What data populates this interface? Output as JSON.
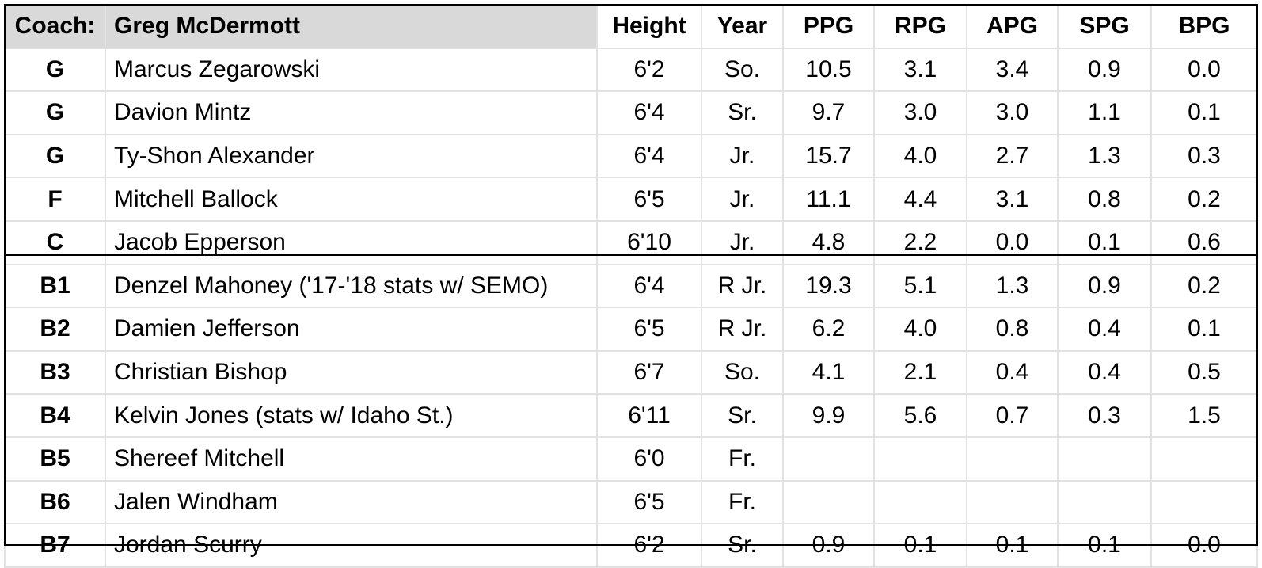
{
  "header": {
    "coach_label": "Coach:",
    "coach_name": "Greg McDermott",
    "columns": [
      "Height",
      "Year",
      "PPG",
      "RPG",
      "APG",
      "SPG",
      "BPG"
    ]
  },
  "rows": [
    {
      "pos": "G",
      "name": "Marcus Zegarowski",
      "height": "6'2",
      "year": "So.",
      "ppg": "10.5",
      "rpg": "3.1",
      "apg": "3.4",
      "spg": "0.9",
      "bpg": "0.0"
    },
    {
      "pos": "G",
      "name": "Davion Mintz",
      "height": "6'4",
      "year": "Sr.",
      "ppg": "9.7",
      "rpg": "3.0",
      "apg": "3.0",
      "spg": "1.1",
      "bpg": "0.1"
    },
    {
      "pos": "G",
      "name": "Ty-Shon Alexander",
      "height": "6'4",
      "year": "Jr.",
      "ppg": "15.7",
      "rpg": "4.0",
      "apg": "2.7",
      "spg": "1.3",
      "bpg": "0.3"
    },
    {
      "pos": "F",
      "name": "Mitchell Ballock",
      "height": "6'5",
      "year": "Jr.",
      "ppg": "11.1",
      "rpg": "4.4",
      "apg": "3.1",
      "spg": "0.8",
      "bpg": "0.2"
    },
    {
      "pos": "C",
      "name": "Jacob Epperson",
      "height": "6'10",
      "year": "Jr.",
      "ppg": "4.8",
      "rpg": "2.2",
      "apg": "0.0",
      "spg": "0.1",
      "bpg": "0.6"
    },
    {
      "pos": "B1",
      "name": "Denzel Mahoney ('17-'18 stats w/ SEMO)",
      "height": "6'4",
      "year": "R Jr.",
      "ppg": "19.3",
      "rpg": "5.1",
      "apg": "1.3",
      "spg": "0.9",
      "bpg": "0.2"
    },
    {
      "pos": "B2",
      "name": "Damien Jefferson",
      "height": "6'5",
      "year": "R Jr.",
      "ppg": "6.2",
      "rpg": "4.0",
      "apg": "0.8",
      "spg": "0.4",
      "bpg": "0.1"
    },
    {
      "pos": "B3",
      "name": "Christian Bishop",
      "height": "6'7",
      "year": "So.",
      "ppg": "4.1",
      "rpg": "2.1",
      "apg": "0.4",
      "spg": "0.4",
      "bpg": "0.5"
    },
    {
      "pos": "B4",
      "name": "Kelvin Jones (stats w/ Idaho St.)",
      "height": "6'11",
      "year": "Sr.",
      "ppg": "9.9",
      "rpg": "5.6",
      "apg": "0.7",
      "spg": "0.3",
      "bpg": "1.5"
    },
    {
      "pos": "B5",
      "name": "Shereef Mitchell",
      "height": "6'0",
      "year": "Fr.",
      "ppg": "",
      "rpg": "",
      "apg": "",
      "spg": "",
      "bpg": ""
    },
    {
      "pos": "B6",
      "name": "Jalen Windham",
      "height": "6'5",
      "year": "Fr.",
      "ppg": "",
      "rpg": "",
      "apg": "",
      "spg": "",
      "bpg": ""
    },
    {
      "pos": "B7",
      "name": "Jordan Scurry",
      "height": "6'2",
      "year": "Sr.",
      "ppg": "0.9",
      "rpg": "0.1",
      "apg": "0.1",
      "spg": "0.1",
      "bpg": "0.0"
    }
  ]
}
